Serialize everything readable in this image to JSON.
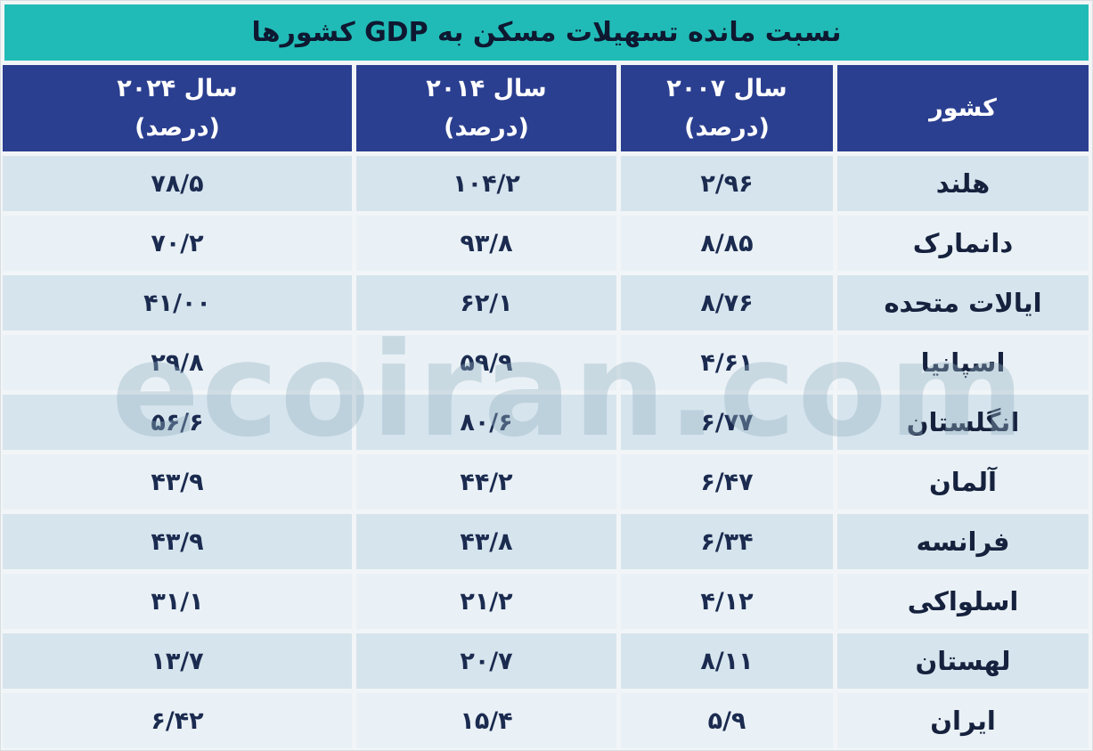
{
  "title": "نسبت مانده تسهیلات مسکن به GDP کشورها",
  "watermark": "ecoiran.com",
  "colors": {
    "title_teal": "#21BBB7",
    "header_blue": "#2B3F90",
    "row_dark": "#D6E4ED",
    "row_light": "#E9F1F6",
    "header_text": "#FFFFFF",
    "body_text": "#1B2B50"
  },
  "table": {
    "headers": [
      {
        "label": "کشور",
        "sub": ""
      },
      {
        "label": "سال ۲۰۰۷",
        "sub": "(درصد)"
      },
      {
        "label": "سال ۲۰۱۴",
        "sub": "(درصد)"
      },
      {
        "label": "سال ۲۰۲۴",
        "sub": "(درصد)"
      }
    ],
    "rows": [
      {
        "country": "هلند",
        "y2007": "۲/۹۶",
        "y2014": "۱۰۴/۲",
        "y2024": "۷۸/۵"
      },
      {
        "country": "دانمارک",
        "y2007": "۸/۸۵",
        "y2014": "۹۳/۸",
        "y2024": "۷۰/۲"
      },
      {
        "country": "ایالات متحده",
        "y2007": "۸/۷۶",
        "y2014": "۶۲/۱",
        "y2024": "۴۱/۰۰"
      },
      {
        "country": "اسپانیا",
        "y2007": "۴/۶۱",
        "y2014": "۵۹/۹",
        "y2024": "۲۹/۸"
      },
      {
        "country": "انگلستان",
        "y2007": "۶/۷۷",
        "y2014": "۸۰/۶",
        "y2024": "۵۶/۶"
      },
      {
        "country": "آلمان",
        "y2007": "۶/۴۷",
        "y2014": "۴۴/۲",
        "y2024": "۴۳/۹"
      },
      {
        "country": "فرانسه",
        "y2007": "۶/۳۴",
        "y2014": "۴۳/۸",
        "y2024": "۴۳/۹"
      },
      {
        "country": "اسلواکی",
        "y2007": "۴/۱۲",
        "y2014": "۲۱/۲",
        "y2024": "۳۱/۱"
      },
      {
        "country": "لهستان",
        "y2007": "۸/۱۱",
        "y2014": "۲۰/۷",
        "y2024": "۱۳/۷"
      },
      {
        "country": "ایران",
        "y2007": "۵/۹",
        "y2014": "۱۵/۴",
        "y2024": "۶/۴۲"
      }
    ]
  },
  "chart_data": {
    "type": "table",
    "title": "نسبت مانده تسهیلات مسکن به GDP کشورها",
    "columns": [
      "کشور",
      "سال ۲۰۰۷ (درصد)",
      "سال ۲۰۱۴ (درصد)",
      "سال ۲۰۲۴ (درصد)"
    ],
    "categories": [
      "هلند",
      "دانمارک",
      "ایالات متحده",
      "اسپانیا",
      "انگلستان",
      "آلمان",
      "فرانسه",
      "اسلواکی",
      "لهستان",
      "ایران"
    ],
    "series": [
      {
        "name": "سال ۲۰۰۷ (درصد)",
        "values": [
          2.96,
          8.85,
          8.76,
          4.61,
          6.77,
          6.47,
          6.34,
          4.12,
          8.11,
          5.9
        ]
      },
      {
        "name": "سال ۲۰۱۴ (درصد)",
        "values": [
          104.2,
          93.8,
          62.1,
          59.9,
          80.6,
          44.2,
          43.8,
          21.2,
          20.7,
          15.4
        ]
      },
      {
        "name": "سال ۲۰۲۴ (درصد)",
        "values": [
          78.5,
          70.2,
          41.0,
          29.8,
          56.6,
          43.9,
          43.9,
          31.1,
          13.7,
          6.42
        ]
      }
    ],
    "layout": {
      "direction": "rtl",
      "watermark": "ecoiran.com"
    }
  }
}
